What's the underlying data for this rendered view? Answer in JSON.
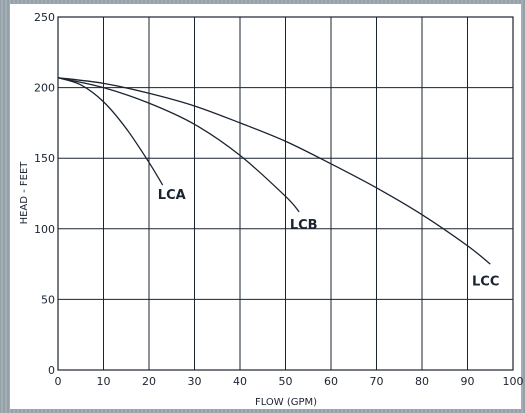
{
  "chart_data": {
    "type": "line",
    "xlabel": "FLOW (GPM)",
    "ylabel": "HEAD - FEET",
    "xlim": [
      0,
      100
    ],
    "ylim": [
      0,
      250
    ],
    "x_ticks": [
      0,
      10,
      20,
      30,
      40,
      50,
      60,
      70,
      80,
      90,
      100
    ],
    "y_ticks": [
      0,
      50,
      100,
      150,
      200,
      250
    ],
    "grid": true,
    "series": [
      {
        "name": "LCA",
        "x": [
          0,
          5,
          10,
          15,
          20,
          23
        ],
        "y": [
          207,
          202,
          190,
          171,
          147,
          131
        ]
      },
      {
        "name": "LCB",
        "x": [
          0,
          10,
          20,
          30,
          40,
          50,
          53
        ],
        "y": [
          207,
          200,
          189,
          174,
          152,
          123,
          112
        ]
      },
      {
        "name": "LCC",
        "x": [
          0,
          10,
          20,
          30,
          40,
          50,
          60,
          70,
          80,
          90,
          95
        ],
        "y": [
          207,
          203,
          196,
          187,
          175,
          162,
          146,
          129,
          110,
          88,
          75
        ]
      }
    ],
    "labels": [
      {
        "text": "LCA",
        "x": 25,
        "y": 121
      },
      {
        "text": "LCB",
        "x": 54,
        "y": 100
      },
      {
        "text": "LCC",
        "x": 94,
        "y": 60
      }
    ],
    "colors": {
      "line": "#1a2330",
      "grid": "#1a2330",
      "background": "#ffffff"
    }
  }
}
